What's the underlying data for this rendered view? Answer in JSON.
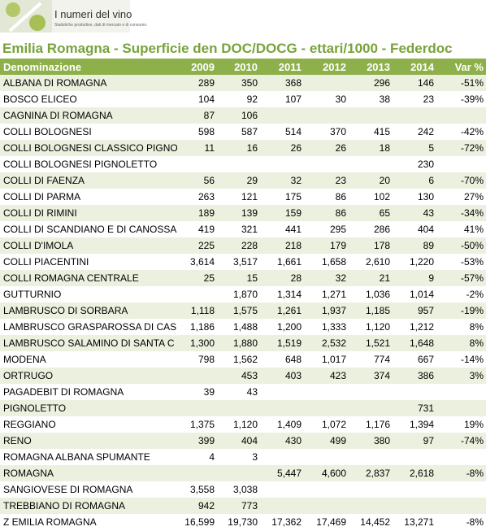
{
  "header": {
    "brand": "I numeri del vino",
    "tagline": "Statistiche produttive, dati di mercato e di consumo."
  },
  "title": "Emilia Romagna - Superficie den DOC/DOCG - ettari/1000 - Federdoc",
  "table": {
    "columns": [
      "Denominazione",
      "2009",
      "2010",
      "2011",
      "2012",
      "2013",
      "2014",
      "Var %"
    ],
    "rows": [
      [
        "ALBANA DI ROMAGNA",
        "289",
        "350",
        "368",
        null,
        "296",
        "146",
        "-51%"
      ],
      [
        "BOSCO ELICEO",
        "104",
        "92",
        "107",
        "30",
        "38",
        "23",
        "-39%"
      ],
      [
        "CAGNINA DI ROMAGNA",
        "87",
        "106",
        null,
        null,
        null,
        null,
        null
      ],
      [
        "COLLI BOLOGNESI",
        "598",
        "587",
        "514",
        "370",
        "415",
        "242",
        "-42%"
      ],
      [
        "COLLI BOLOGNESI CLASSICO PIGNO",
        "11",
        "16",
        "26",
        "26",
        "18",
        "5",
        "-72%"
      ],
      [
        "COLLI BOLOGNESI PIGNOLETTO",
        null,
        null,
        null,
        null,
        null,
        "230",
        null
      ],
      [
        "COLLI DI FAENZA",
        "56",
        "29",
        "32",
        "23",
        "20",
        "6",
        "-70%"
      ],
      [
        "COLLI DI PARMA",
        "263",
        "121",
        "175",
        "86",
        "102",
        "130",
        "27%"
      ],
      [
        "COLLI DI RIMINI",
        "189",
        "139",
        "159",
        "86",
        "65",
        "43",
        "-34%"
      ],
      [
        "COLLI DI SCANDIANO E DI CANOSSA",
        "419",
        "321",
        "441",
        "295",
        "286",
        "404",
        "41%"
      ],
      [
        "COLLI D'IMOLA",
        "225",
        "228",
        "218",
        "179",
        "178",
        "89",
        "-50%"
      ],
      [
        "COLLI PIACENTINI",
        "3,614",
        "3,517",
        "1,661",
        "1,658",
        "2,610",
        "1,220",
        "-53%"
      ],
      [
        "COLLI ROMAGNA CENTRALE",
        "25",
        "15",
        "28",
        "32",
        "21",
        "9",
        "-57%"
      ],
      [
        "GUTTURNIO",
        null,
        "1,870",
        "1,314",
        "1,271",
        "1,036",
        "1,014",
        "-2%"
      ],
      [
        "LAMBRUSCO DI SORBARA",
        "1,118",
        "1,575",
        "1,261",
        "1,937",
        "1,185",
        "957",
        "-19%"
      ],
      [
        "LAMBRUSCO GRASPAROSSA DI CAS",
        "1,186",
        "1,488",
        "1,200",
        "1,333",
        "1,120",
        "1,212",
        "8%"
      ],
      [
        "LAMBRUSCO SALAMINO DI SANTA C",
        "1,300",
        "1,880",
        "1,519",
        "2,532",
        "1,521",
        "1,648",
        "8%"
      ],
      [
        "MODENA",
        "798",
        "1,562",
        "648",
        "1,017",
        "774",
        "667",
        "-14%"
      ],
      [
        "ORTRUGO",
        null,
        "453",
        "403",
        "423",
        "374",
        "386",
        "3%"
      ],
      [
        "PAGADEBIT DI ROMAGNA",
        "39",
        "43",
        null,
        null,
        null,
        null,
        null
      ],
      [
        "PIGNOLETTO",
        null,
        null,
        null,
        null,
        null,
        "731",
        null
      ],
      [
        "REGGIANO",
        "1,375",
        "1,120",
        "1,409",
        "1,072",
        "1,176",
        "1,394",
        "19%"
      ],
      [
        "RENO",
        "399",
        "404",
        "430",
        "499",
        "380",
        "97",
        "-74%"
      ],
      [
        "ROMAGNA ALBANA SPUMANTE",
        "4",
        "3",
        null,
        null,
        null,
        null,
        null
      ],
      [
        "ROMAGNA",
        null,
        null,
        "5,447",
        "4,600",
        "2,837",
        "2,618",
        "-8%"
      ],
      [
        "SANGIOVESE DI ROMAGNA",
        "3,558",
        "3,038",
        null,
        null,
        null,
        null,
        null
      ],
      [
        "TREBBIANO DI ROMAGNA",
        "942",
        "773",
        null,
        null,
        null,
        null,
        null
      ],
      [
        "Z EMILIA ROMAGNA",
        "16,599",
        "19,730",
        "17,362",
        "17,469",
        "14,452",
        "13,271",
        "-8%"
      ]
    ]
  }
}
